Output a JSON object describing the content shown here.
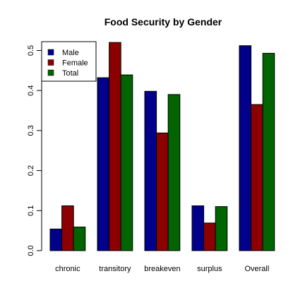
{
  "chart_data": {
    "type": "bar",
    "title": "Food Security by Gender",
    "xlabel": "",
    "ylabel": "",
    "categories": [
      "chronic",
      "transitory",
      "breakeven",
      "surplus",
      "Overall"
    ],
    "series": [
      {
        "name": "Male",
        "color": "#00008B",
        "values": [
          0.054,
          0.432,
          0.398,
          0.112,
          0.512
        ]
      },
      {
        "name": "Female",
        "color": "#8B0000",
        "values": [
          0.112,
          0.52,
          0.294,
          0.069,
          0.365
        ]
      },
      {
        "name": "Total",
        "color": "#006400",
        "values": [
          0.059,
          0.439,
          0.39,
          0.11,
          0.493
        ]
      }
    ],
    "ylim": [
      0,
      0.52
    ],
    "yticks": [
      "0.0",
      "0.1",
      "0.2",
      "0.3",
      "0.4",
      "0.5"
    ],
    "legend_position": "top-left",
    "grid": false
  }
}
